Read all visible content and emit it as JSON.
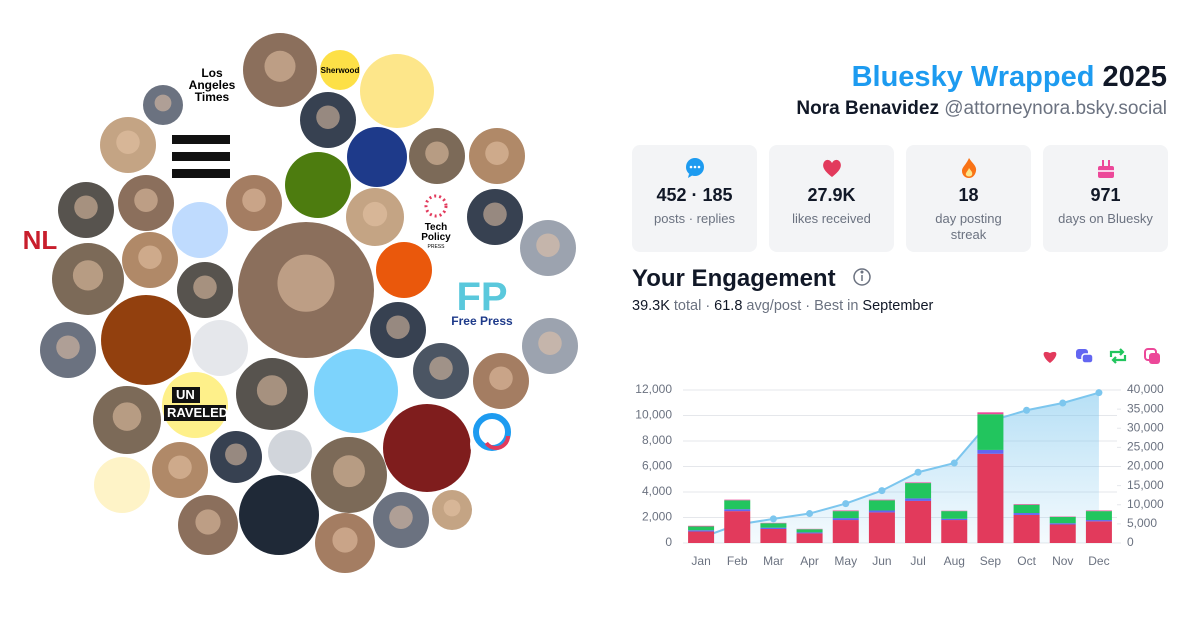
{
  "header": {
    "title": "Bluesky Wrapped",
    "year": "2025",
    "name": "Nora Benavidez",
    "handle": "@attorneynora.bsky.social"
  },
  "avatar_logos": {
    "la_times": [
      "Los",
      "Angeles",
      "Times"
    ],
    "sherwood": "Sherwood",
    "nl": "NL",
    "fp": "FP",
    "free_press": "Free Press",
    "unraveled": [
      "UN",
      "RAVELED"
    ],
    "tech_policy": [
      "Tech",
      "Policy",
      "PRESS"
    ]
  },
  "stats": [
    {
      "value": "452 · 185",
      "label": "posts · replies"
    },
    {
      "value": "27.9K",
      "label": "likes received"
    },
    {
      "value": "18",
      "label": "day posting streak"
    },
    {
      "value": "971",
      "label": "days on Bluesky"
    }
  ],
  "engagement": {
    "title": "Your Engagement",
    "summary": [
      "39.3K",
      "total ·",
      "61.8",
      "avg/post ·",
      "Best in",
      "September"
    ]
  },
  "chart_data": {
    "type": "bar",
    "stacked": true,
    "categories": [
      "Jan",
      "Feb",
      "Mar",
      "Apr",
      "May",
      "Jun",
      "Jul",
      "Aug",
      "Sep",
      "Oct",
      "Nov",
      "Dec"
    ],
    "series": [
      {
        "color": "#e23a5c",
        "values": [
          900,
          2500,
          1100,
          750,
          1800,
          2400,
          3300,
          1800,
          7000,
          2200,
          1450,
          1700
        ]
      },
      {
        "color": "#6366f1",
        "values": [
          100,
          150,
          100,
          80,
          150,
          150,
          200,
          100,
          300,
          150,
          100,
          100
        ]
      },
      {
        "color": "#22c55e",
        "values": [
          300,
          700,
          350,
          250,
          550,
          800,
          1200,
          600,
          2800,
          650,
          500,
          700
        ]
      },
      {
        "color": "#ec4899",
        "values": [
          50,
          50,
          30,
          30,
          50,
          50,
          50,
          30,
          150,
          50,
          30,
          50
        ]
      },
      {
        "type": "line",
        "axis": "y2",
        "color": "#7cc6ee",
        "values": [
          1400,
          4800,
          6300,
          7700,
          10300,
          13700,
          18500,
          20900,
          31900,
          34700,
          36600,
          39300
        ]
      }
    ],
    "ylim": [
      0,
      12000
    ],
    "yticks": [
      0,
      {
        "value": 2000,
        "label": "2,000"
      },
      {
        "value": 4000,
        "label": "4,000"
      },
      {
        "value": 6000,
        "label": "6,000"
      },
      {
        "value": 8000,
        "label": "8,000"
      },
      {
        "value": 10000,
        "label": "10,000"
      },
      {
        "value": 12000,
        "label": "12,000"
      }
    ],
    "y2lim": [
      0,
      40000
    ],
    "y2ticks": [
      0,
      {
        "value": 5000,
        "label": "5,000"
      },
      {
        "value": 10000,
        "label": "10,000"
      },
      {
        "value": 15000,
        "label": "15,000"
      },
      {
        "value": 20000,
        "label": "20,000"
      },
      {
        "value": 25000,
        "label": "25,000"
      },
      {
        "value": 30000,
        "label": "30,000"
      },
      {
        "value": 35000,
        "label": "35,000"
      },
      {
        "value": 40000,
        "label": "40,000"
      }
    ],
    "grid": true
  }
}
